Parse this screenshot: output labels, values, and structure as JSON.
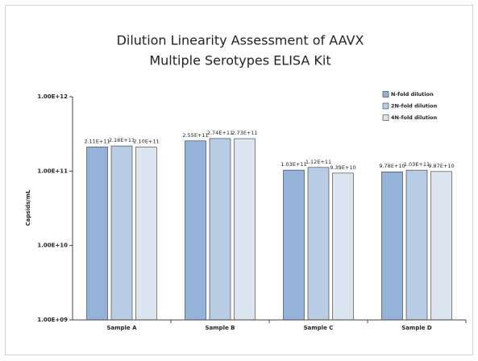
{
  "chart_data": {
    "type": "bar",
    "title": [
      "Dilution Linearity Assessment of AAVX",
      "Multiple Serotypes ELISA Kit"
    ],
    "ylabel": "Capsids/mL",
    "categories": [
      "Sample A",
      "Sample B",
      "Sample C",
      "Sample D"
    ],
    "series": [
      {
        "name": "N-fold dilution",
        "color": "#95b3d7",
        "values": [
          211000000000,
          255000000000,
          103000000000,
          97800000000
        ],
        "value_labels": [
          "2.11E+11",
          "2.55E+11",
          "1.03E+11",
          "9.78E+10"
        ]
      },
      {
        "name": "2N-fold dilution",
        "color": "#b8cce4",
        "values": [
          218000000000,
          274000000000,
          112000000000,
          103000000000
        ],
        "value_labels": [
          "2.18E+11",
          "2.74E+11",
          "1.12E+11",
          "1.03E+11"
        ]
      },
      {
        "name": "4N-fold dilution",
        "color": "#dce6f1",
        "values": [
          210000000000,
          273000000000,
          93900000000,
          98700000000
        ],
        "value_labels": [
          "2.10E+11",
          "2.73E+11",
          "9.39E+10",
          "9.87E+10"
        ]
      }
    ],
    "log_scale": true,
    "ylim": [
      1000000000,
      1000000000000
    ],
    "yticks": [
      {
        "value": 1000000000,
        "label": "1.00E+09"
      },
      {
        "value": 10000000000,
        "label": "1.00E+10"
      },
      {
        "value": 100000000000,
        "label": "1.00E+11"
      },
      {
        "value": 1000000000000,
        "label": "1.00E+12"
      }
    ],
    "legend": "top-right"
  }
}
